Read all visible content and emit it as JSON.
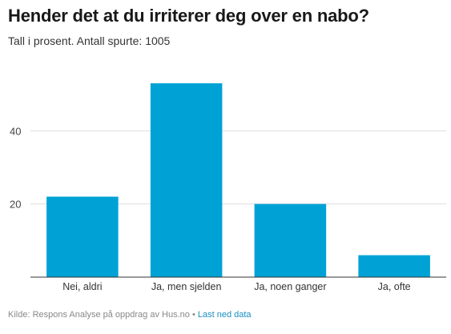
{
  "header": {
    "title": "Hender det at du irriterer deg over en nabo?",
    "subtitle": "Tall i prosent. Antall spurte: 1005"
  },
  "footer": {
    "source": "Kilde: Respons Analyse på oppdrag av Hus.no",
    "separator": "•",
    "download_link": "Last ned data"
  },
  "colors": {
    "bar": "#00a2d6",
    "grid": "#dddddd",
    "axis": "#333333",
    "link": "#1a8fc4"
  },
  "chart_data": {
    "type": "bar",
    "title": "Hender det at du irriterer deg over en nabo?",
    "subtitle": "Tall i prosent. Antall spurte: 1005",
    "categories": [
      "Nei, aldri",
      "Ja, men sjelden",
      "Ja, noen ganger",
      "Ja, ofte"
    ],
    "values": [
      22,
      53,
      20,
      6
    ],
    "xlabel": "",
    "ylabel": "",
    "ylim": [
      0,
      60
    ],
    "yticks": [
      20,
      40
    ],
    "grid": true,
    "legend": "none"
  }
}
